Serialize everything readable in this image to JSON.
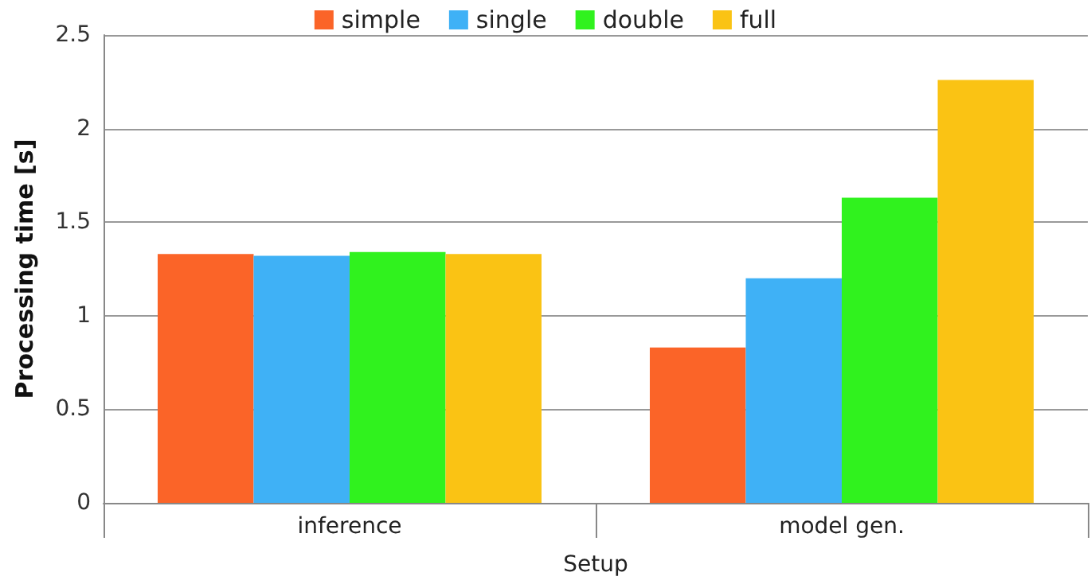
{
  "chart_data": {
    "type": "bar",
    "categories": [
      "inference",
      "model gen."
    ],
    "xlabel": "Setup",
    "ylabel": "Processing time [s]",
    "series": [
      {
        "name": "simple",
        "color": "#fb6428",
        "values": [
          1.33,
          0.83
        ]
      },
      {
        "name": "single",
        "color": "#3fb1f6",
        "values": [
          1.32,
          1.2
        ]
      },
      {
        "name": "double",
        "color": "#30f21e",
        "values": [
          1.34,
          1.63
        ]
      },
      {
        "name": "full",
        "color": "#fac314",
        "values": [
          1.33,
          2.26
        ]
      }
    ],
    "ylim": [
      0,
      2.5
    ],
    "yticks": [
      0,
      0.5,
      1,
      1.5,
      2,
      2.5
    ],
    "grid": "y",
    "legend": "top"
  }
}
